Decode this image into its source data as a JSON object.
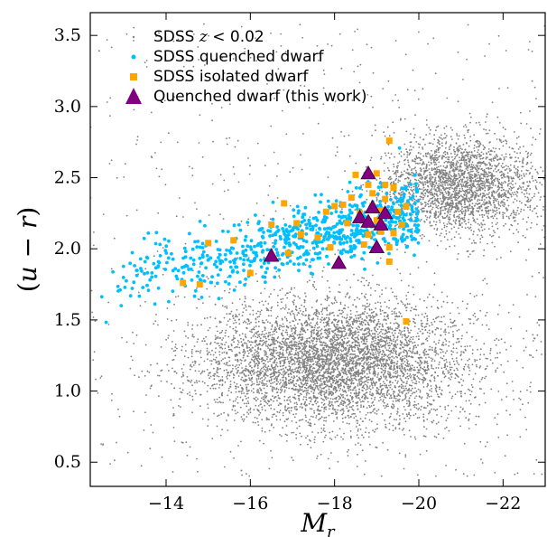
{
  "chart_data": {
    "type": "scatter",
    "xlabel": "M_r",
    "ylabel": "(u − r)",
    "xlim": [
      -12.2,
      -23.0
    ],
    "ylim": [
      0.33,
      3.66
    ],
    "x_ticks": [
      -14,
      -16,
      -18,
      -20,
      -22
    ],
    "x_tick_labels": [
      "−14",
      "−16",
      "−18",
      "−20",
      "−22"
    ],
    "y_ticks": [
      0.5,
      1.0,
      1.5,
      2.0,
      2.5,
      3.0,
      3.5
    ],
    "y_tick_labels": [
      "0.5",
      "1.0",
      "1.5",
      "2.0",
      "2.5",
      "3.0",
      "3.5"
    ],
    "legend_position": "top-left",
    "grid": false,
    "colors": {
      "background_sdss": "#808080",
      "quenched_sdss": "#00BFFF",
      "isolated_sdss": "#FFA500",
      "this_work": "#800080"
    },
    "series": [
      {
        "name": "SDSS z < 0.02",
        "marker": "dot",
        "distribution": [
          {
            "region": "blue cloud",
            "center": [
              -18.0,
              1.2
            ],
            "spread": [
              1.6,
              0.22
            ],
            "count": 5200
          },
          {
            "region": "red sequence",
            "center": [
              -21.0,
              2.45
            ],
            "spread": [
              0.9,
              0.17
            ],
            "count": 2500
          },
          {
            "region": "scattered field",
            "x_range": [
              -12.2,
              -23.0
            ],
            "y_range": [
              0.4,
              3.6
            ],
            "count": 600
          }
        ]
      },
      {
        "name": "SDSS quenched dwarf",
        "marker": "circle",
        "distribution": [
          {
            "region": "quenched dwarf locus",
            "x_range": [
              -12.4,
              -20.0
            ],
            "y_range": [
              1.6,
              2.6
            ],
            "count": 750
          }
        ]
      },
      {
        "name": "SDSS isolated dwarf",
        "marker": "square",
        "points": [
          [
            -14.4,
            1.76
          ],
          [
            -14.8,
            1.75
          ],
          [
            -15.0,
            2.04
          ],
          [
            -15.6,
            2.06
          ],
          [
            -16.0,
            1.83
          ],
          [
            -16.5,
            2.17
          ],
          [
            -16.8,
            2.32
          ],
          [
            -16.9,
            1.97
          ],
          [
            -17.1,
            2.18
          ],
          [
            -17.2,
            2.1
          ],
          [
            -17.6,
            2.08
          ],
          [
            -17.8,
            2.26
          ],
          [
            -17.9,
            2.01
          ],
          [
            -18.0,
            2.3
          ],
          [
            -18.2,
            2.31
          ],
          [
            -18.4,
            2.36
          ],
          [
            -18.5,
            2.52
          ],
          [
            -18.7,
            2.03
          ],
          [
            -18.8,
            2.45
          ],
          [
            -18.9,
            2.3
          ],
          [
            -19.0,
            2.53
          ],
          [
            -19.1,
            2.17
          ],
          [
            -19.1,
            2.27
          ],
          [
            -19.2,
            2.45
          ],
          [
            -19.2,
            2.35
          ],
          [
            -19.3,
            2.76
          ],
          [
            -19.3,
            1.91
          ],
          [
            -19.4,
            2.11
          ],
          [
            -19.5,
            2.26
          ],
          [
            -19.6,
            2.17
          ],
          [
            -19.7,
            1.49
          ],
          [
            -19.7,
            2.3
          ],
          [
            -19.3,
            2.01
          ],
          [
            -18.8,
            2.1
          ],
          [
            -19.0,
            2.2
          ],
          [
            -18.6,
            2.25
          ],
          [
            -18.3,
            2.18
          ],
          [
            -18.9,
            2.39
          ],
          [
            -19.4,
            2.43
          ],
          [
            -19.1,
            2.12
          ]
        ]
      },
      {
        "name": "Quenched dwarf (this work)",
        "marker": "triangle",
        "points": [
          [
            -16.5,
            1.95
          ],
          [
            -18.1,
            1.9
          ],
          [
            -18.6,
            2.22
          ],
          [
            -18.8,
            2.53
          ],
          [
            -18.8,
            2.19
          ],
          [
            -18.9,
            2.29
          ],
          [
            -19.0,
            2.01
          ],
          [
            -19.1,
            2.17
          ],
          [
            -19.2,
            2.25
          ]
        ]
      }
    ]
  }
}
